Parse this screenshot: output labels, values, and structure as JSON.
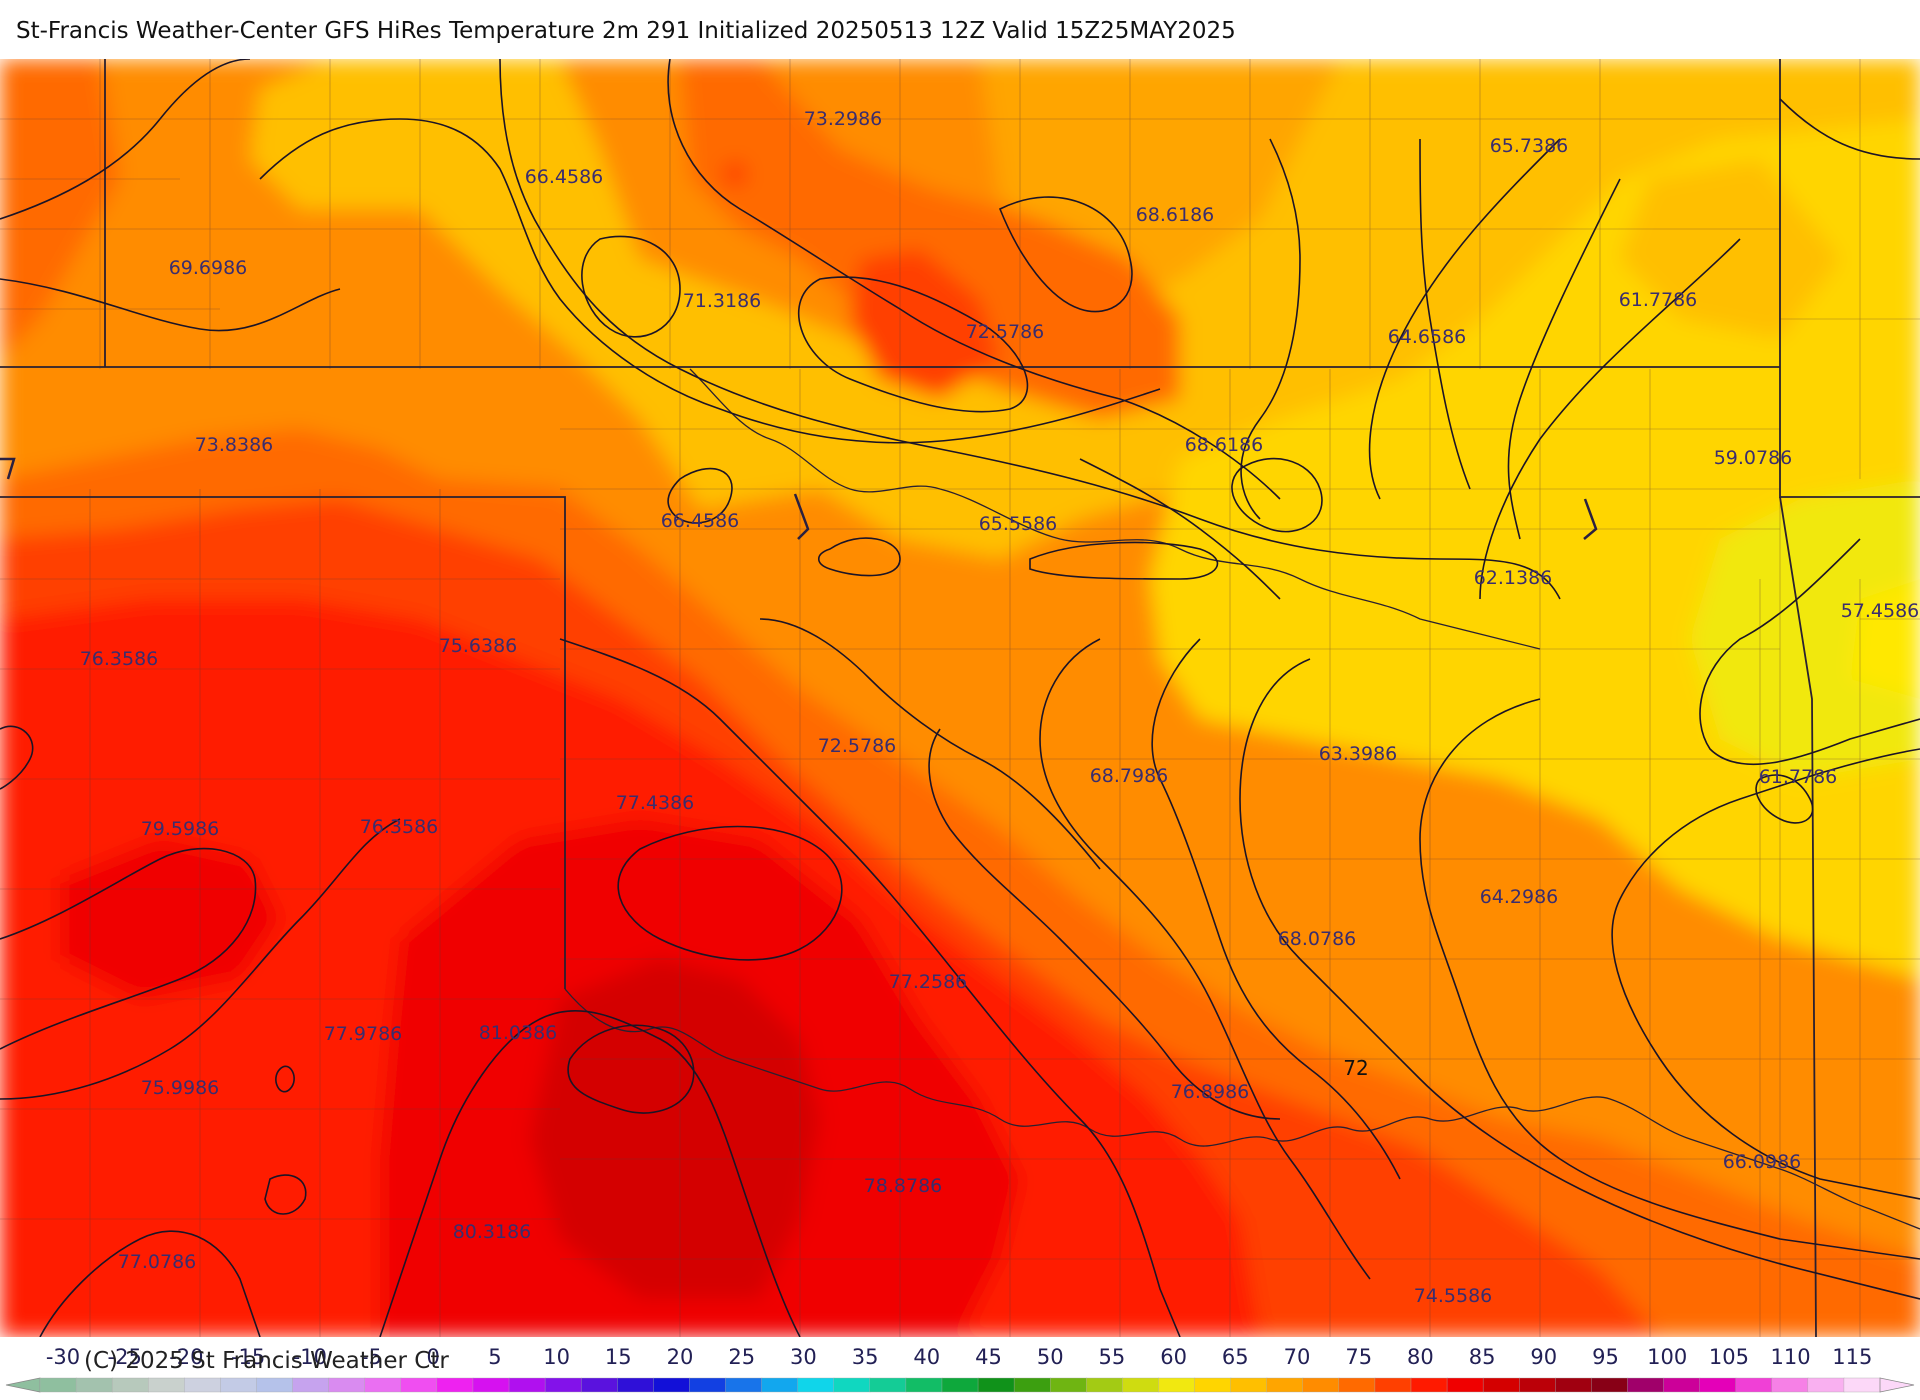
{
  "title": "St-Francis Weather-Center GFS HiRes Temperature 2m  291 Initialized 20250513 12Z Valid 15Z25MAY2025",
  "copyright": "(C) 2025 St Francis Weather Ctr",
  "contour_label": "72",
  "point_labels": [
    "73.2986",
    "66.4586",
    "65.7386",
    "68.6186",
    "69.6986",
    "71.3186",
    "72.5786",
    "64.6586",
    "61.7786",
    "73.8386",
    "68.6186",
    "59.0786",
    "66.4586",
    "65.5586",
    "62.1386",
    "57.4586",
    "76.3586",
    "75.6386",
    "72.5786",
    "68.7986",
    "63.3986",
    "61.7786",
    "77.4386",
    "79.5986",
    "76.3586",
    "64.2986",
    "68.0786",
    "77.2586",
    "77.9786",
    "81.0386",
    "75.9986",
    "76.8986",
    "66.0986",
    "78.8786",
    "80.3186",
    "77.0786",
    "74.5586"
  ],
  "legend": {
    "ticks": [
      "-30",
      "-25",
      "-20",
      "-15",
      "-10",
      "-5",
      "0",
      "5",
      "10",
      "15",
      "20",
      "25",
      "30",
      "35",
      "40",
      "45",
      "50",
      "55",
      "60",
      "65",
      "70",
      "75",
      "80",
      "85",
      "90",
      "95",
      "100",
      "105",
      "110",
      "115"
    ],
    "colors": [
      "#8fbf9f",
      "#a3c2ae",
      "#b7c9bc",
      "#c9d1cd",
      "#cdd1e0",
      "#c3cbe6",
      "#b5c2ea",
      "#c6a3ee",
      "#d98bf0",
      "#ea6ff2",
      "#f04ef1",
      "#ee22f0",
      "#d611f0",
      "#b010ef",
      "#8312ea",
      "#5a12de",
      "#2f10d8",
      "#1210d8",
      "#1240e2",
      "#1874ea",
      "#12a7ee",
      "#10d5ea",
      "#10d7c0",
      "#14cc96",
      "#12bd66",
      "#0ea83c",
      "#10921a",
      "#3c9f10",
      "#6fb512",
      "#a3cb14",
      "#cfdc10",
      "#f1e810",
      "#ffd500",
      "#ffbf00",
      "#ffa500",
      "#ff8c00",
      "#ff6a00",
      "#ff4000",
      "#ff1a00",
      "#f00000",
      "#d40000",
      "#bb0008",
      "#a00010",
      "#880016",
      "#a0006a",
      "#cc0099",
      "#e400b8",
      "#f040d6",
      "#f680e6",
      "#f9b0f0",
      "#fcd8f8"
    ]
  }
}
